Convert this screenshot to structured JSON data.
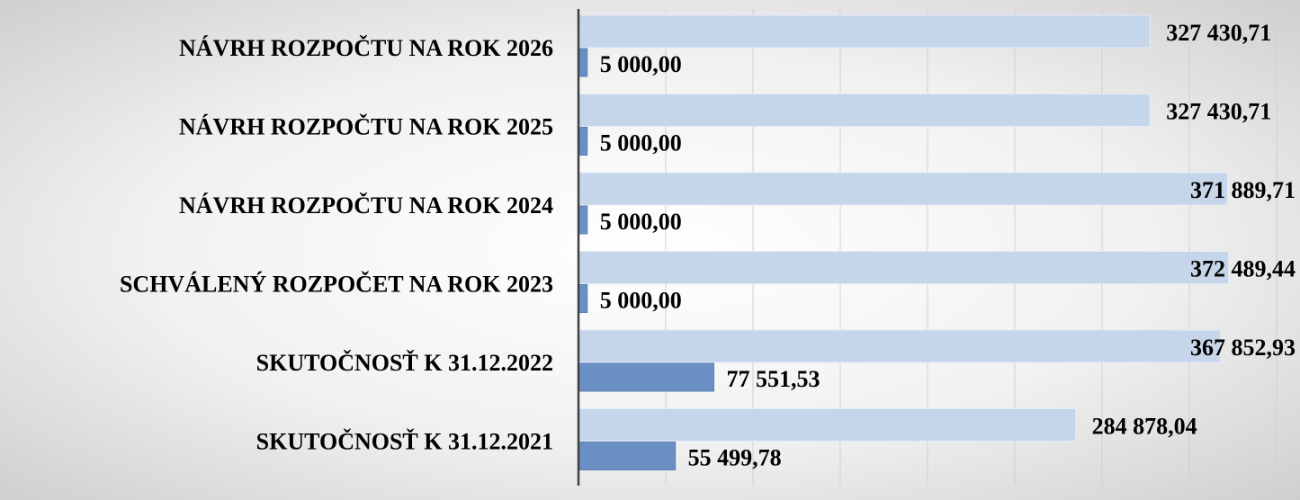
{
  "chart_data": {
    "type": "bar",
    "orientation": "horizontal",
    "categories": [
      "NÁVRH ROZPOČTU NA ROK 2026",
      "NÁVRH ROZPOČTU NA ROK 2025",
      "NÁVRH ROZPOČTU NA ROK 2024",
      "SCHVÁLENÝ ROZPOČET NA ROK  2023",
      "SKUTOČNOSŤ K 31.12.2022",
      "SKUTOČNOSŤ K 31.12.2021"
    ],
    "series": [
      {
        "color": "#c5d5ea",
        "values": [
          327430.71,
          327430.71,
          371889.71,
          372489.44,
          367852.93,
          284878.04
        ],
        "value_labels": [
          "327 430,71",
          "327 430,71",
          "371 889,71",
          "372 489,44",
          "367 852,93",
          "284 878,04"
        ]
      },
      {
        "color": "#6a8fc4",
        "values": [
          5000,
          5000,
          5000,
          5000,
          77551.53,
          55499.78
        ],
        "value_labels": [
          "5 000,00",
          "5 000,00",
          "5 000,00",
          "5 000,00",
          "77 551,53",
          "55 499,78"
        ]
      }
    ],
    "xlim": [
      0,
      400000
    ],
    "xticks": [
      0,
      50000,
      100000,
      150000,
      200000,
      250000,
      300000,
      350000,
      400000
    ],
    "grid": true
  }
}
